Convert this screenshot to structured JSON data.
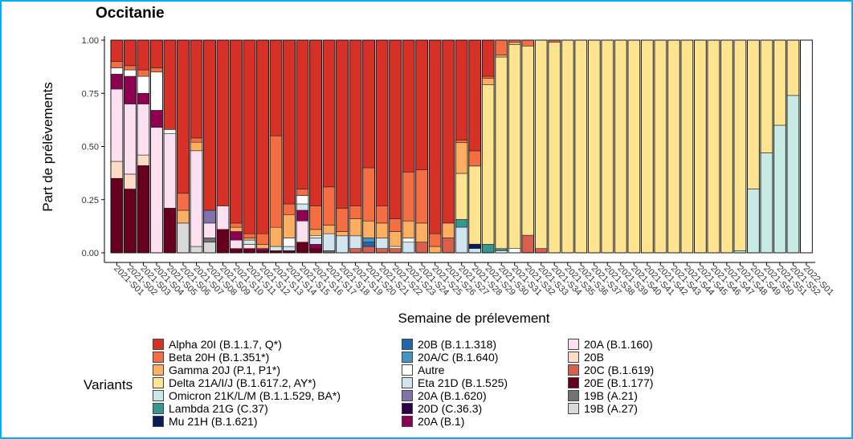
{
  "title": "Occitanie",
  "chart_data": {
    "type": "bar",
    "stacked": true,
    "xlabel": "Semaine de prélevement",
    "ylabel": "Part de prélèvements",
    "ylim": [
      0,
      1
    ],
    "yticks": [
      "0.00",
      "0.25",
      "0.50",
      "0.75",
      "1.00"
    ],
    "legend_title": "Variants",
    "legend_position": "bottom",
    "categories": [
      "2021-S01",
      "2021-S02",
      "2021-S03",
      "2021-S04",
      "2021-S05",
      "2021-S06",
      "2021-S07",
      "2021-S08",
      "2021-S09",
      "2021-S10",
      "2021-S11",
      "2021-S12",
      "2021-S13",
      "2021-S14",
      "2021-S15",
      "2021-S16",
      "2021-S17",
      "2021-S18",
      "2021-S19",
      "2021-S20",
      "2021-S21",
      "2021-S22",
      "2021-S23",
      "2021-S24",
      "2021-S25",
      "2021-S26",
      "2021-S27",
      "2021-S28",
      "2021-S29",
      "2021-S30",
      "2021-S31",
      "2021-S32",
      "2021-S33",
      "2021-S34",
      "2021-S35",
      "2021-S36",
      "2021-S37",
      "2021-S38",
      "2021-S39",
      "2021-S40",
      "2021-S41",
      "2021-S42",
      "2021-S43",
      "2021-S44",
      "2021-S45",
      "2021-S46",
      "2021-S47",
      "2021-S48",
      "2021-S49",
      "2021-S50",
      "2021-S51",
      "2021-S52",
      "2022-S01"
    ],
    "series": [
      {
        "name": "19B (A.27)",
        "color": "#d9d9d9",
        "values": [
          0,
          0,
          0,
          0,
          0,
          0.14,
          0.03,
          0.05,
          0,
          0,
          0,
          0,
          0,
          0,
          0,
          0,
          0,
          0,
          0,
          0,
          0,
          0,
          0,
          0,
          0,
          0,
          0,
          0,
          0,
          0,
          0,
          0,
          0,
          0,
          0,
          0,
          0,
          0,
          0,
          0,
          0,
          0,
          0,
          0,
          0,
          0,
          0,
          0,
          0,
          0,
          0,
          0,
          0
        ]
      },
      {
        "name": "19B (A.21)",
        "color": "#737373",
        "values": [
          0,
          0,
          0,
          0,
          0,
          0,
          0,
          0.02,
          0,
          0,
          0,
          0,
          0,
          0,
          0,
          0,
          0.01,
          0,
          0,
          0,
          0,
          0,
          0,
          0,
          0,
          0,
          0,
          0,
          0,
          0,
          0,
          0,
          0,
          0,
          0,
          0,
          0,
          0,
          0,
          0,
          0,
          0,
          0,
          0,
          0,
          0,
          0,
          0,
          0,
          0,
          0,
          0,
          0
        ]
      },
      {
        "name": "20E (B.1.177)",
        "color": "#67001f",
        "values": [
          0.35,
          0.3,
          0.41,
          0,
          0.21,
          0,
          0,
          0,
          0.11,
          0.02,
          0.02,
          0.01,
          0.01,
          0.01,
          0.05,
          0.02,
          0,
          0,
          0,
          0,
          0,
          0,
          0,
          0,
          0,
          0,
          0,
          0,
          0,
          0,
          0,
          0,
          0,
          0,
          0,
          0,
          0,
          0,
          0,
          0,
          0,
          0,
          0,
          0,
          0,
          0,
          0,
          0,
          0,
          0,
          0,
          0,
          0
        ]
      },
      {
        "name": "20C (B.1.619)",
        "color": "#d6604d",
        "values": [
          0,
          0,
          0,
          0,
          0,
          0,
          0,
          0,
          0,
          0,
          0,
          0,
          0,
          0,
          0,
          0,
          0,
          0,
          0.02,
          0.03,
          0.02,
          0.02,
          0,
          0.05,
          0,
          0.07,
          0,
          0,
          0,
          0,
          0,
          0.09,
          0.02,
          0,
          0,
          0,
          0,
          0,
          0,
          0,
          0,
          0,
          0,
          0,
          0,
          0,
          0,
          0,
          0,
          0,
          0,
          0,
          0
        ]
      },
      {
        "name": "20B",
        "color": "#fddbc7",
        "values": [
          0.08,
          0.07,
          0.05,
          0,
          0,
          0,
          0,
          0,
          0,
          0,
          0,
          0,
          0,
          0,
          0,
          0,
          0,
          0,
          0,
          0,
          0,
          0,
          0,
          0,
          0,
          0,
          0,
          0,
          0,
          0,
          0,
          0,
          0,
          0,
          0,
          0,
          0,
          0,
          0,
          0,
          0,
          0,
          0,
          0,
          0,
          0,
          0,
          0,
          0,
          0,
          0,
          0,
          0
        ]
      },
      {
        "name": "20A (B.1.160)",
        "color": "#fde0ef",
        "values": [
          0.34,
          0.33,
          0.24,
          0.59,
          0.35,
          0,
          0.45,
          0.07,
          0.11,
          0.04,
          0.02,
          0,
          0,
          0,
          0.1,
          0,
          0,
          0,
          0,
          0,
          0,
          0,
          0,
          0,
          0,
          0,
          0,
          0,
          0,
          0,
          0,
          0,
          0,
          0,
          0,
          0,
          0,
          0,
          0,
          0,
          0,
          0,
          0,
          0,
          0,
          0,
          0,
          0,
          0,
          0,
          0,
          0,
          0
        ]
      },
      {
        "name": "20A (B.1)",
        "color": "#8e0152",
        "values": [
          0.07,
          0.13,
          0.05,
          0.08,
          0,
          0,
          0,
          0,
          0,
          0.04,
          0,
          0.01,
          0,
          0,
          0.05,
          0.02,
          0,
          0,
          0,
          0,
          0,
          0,
          0,
          0,
          0,
          0,
          0,
          0,
          0,
          0,
          0,
          0,
          0,
          0,
          0,
          0,
          0,
          0,
          0,
          0,
          0,
          0,
          0,
          0,
          0,
          0,
          0,
          0,
          0,
          0,
          0,
          0,
          0
        ]
      },
      {
        "name": "20A (B.1.620)",
        "color": "#8073ac",
        "values": [
          0,
          0,
          0,
          0,
          0,
          0,
          0,
          0.06,
          0,
          0,
          0,
          0,
          0,
          0,
          0,
          0,
          0,
          0,
          0,
          0,
          0,
          0,
          0,
          0,
          0,
          0,
          0,
          0,
          0,
          0,
          0,
          0,
          0,
          0,
          0,
          0,
          0,
          0,
          0,
          0,
          0,
          0,
          0,
          0,
          0,
          0,
          0,
          0,
          0,
          0,
          0,
          0,
          0
        ]
      },
      {
        "name": "Eta 21D (B.1.525)",
        "color": "#d1e5f0",
        "values": [
          0,
          0,
          0,
          0,
          0,
          0,
          0,
          0,
          0,
          0,
          0.02,
          0,
          0.02,
          0.02,
          0.03,
          0.03,
          0.08,
          0.08,
          0.06,
          0,
          0.05,
          0,
          0.05,
          0,
          0,
          0,
          0.1,
          0.02,
          0,
          0,
          0,
          0,
          0,
          0,
          0,
          0,
          0,
          0,
          0,
          0,
          0,
          0,
          0,
          0,
          0,
          0,
          0,
          0,
          0,
          0,
          0,
          0,
          0
        ]
      },
      {
        "name": "20B (B.1.1.318)",
        "color": "#2166ac",
        "values": [
          0,
          0,
          0,
          0,
          0,
          0,
          0,
          0,
          0,
          0,
          0,
          0,
          0,
          0,
          0,
          0,
          0,
          0,
          0,
          0.02,
          0,
          0,
          0,
          0,
          0,
          0,
          0,
          0,
          0,
          0,
          0,
          0,
          0,
          0,
          0,
          0,
          0,
          0,
          0,
          0,
          0,
          0,
          0,
          0,
          0,
          0,
          0,
          0,
          0,
          0,
          0,
          0,
          0
        ]
      },
      {
        "name": "20A/C (B.1.640)",
        "color": "#4393c3",
        "values": [
          0,
          0,
          0,
          0,
          0,
          0,
          0,
          0,
          0,
          0,
          0,
          0,
          0,
          0,
          0,
          0,
          0,
          0,
          0,
          0.02,
          0,
          0,
          0,
          0,
          0,
          0,
          0,
          0,
          0,
          0,
          0,
          0,
          0,
          0,
          0,
          0,
          0,
          0,
          0,
          0,
          0,
          0,
          0,
          0,
          0,
          0,
          0,
          0,
          0,
          0,
          0,
          0,
          0
        ]
      },
      {
        "name": "Autre",
        "color": "#ffffff",
        "values": [
          0.03,
          0.03,
          0.08,
          0.18,
          0.02,
          0,
          0,
          0,
          0,
          0,
          0,
          0,
          0,
          0.04,
          0.04,
          0.01,
          0,
          0,
          0,
          0,
          0,
          0.01,
          0.02,
          0,
          0,
          0,
          0,
          0,
          0,
          0.01,
          0.02,
          0,
          0,
          0,
          0,
          0,
          0,
          0,
          0,
          0,
          0,
          0,
          0,
          0,
          0,
          0,
          0,
          0,
          0,
          0,
          0,
          0,
          0
        ]
      },
      {
        "name": "Mu 21H (B.1.621)",
        "color": "#081d58",
        "values": [
          0,
          0,
          0,
          0,
          0,
          0,
          0,
          0,
          0,
          0,
          0,
          0,
          0,
          0,
          0,
          0,
          0,
          0,
          0,
          0,
          0,
          0,
          0,
          0,
          0,
          0,
          0,
          0.02,
          0,
          0,
          0,
          0,
          0,
          0,
          0,
          0,
          0,
          0,
          0,
          0,
          0,
          0,
          0,
          0,
          0,
          0,
          0,
          0,
          0,
          0,
          0,
          0,
          0
        ]
      },
      {
        "name": "Lambda 21G (C.37)",
        "color": "#35978f",
        "values": [
          0,
          0,
          0,
          0,
          0,
          0,
          0,
          0,
          0,
          0,
          0,
          0,
          0,
          0,
          0,
          0,
          0,
          0,
          0,
          0,
          0,
          0,
          0,
          0,
          0,
          0,
          0.03,
          0,
          0.04,
          0.01,
          0,
          0,
          0,
          0,
          0,
          0,
          0,
          0,
          0,
          0,
          0,
          0,
          0,
          0,
          0,
          0,
          0,
          0,
          0,
          0,
          0,
          0,
          0
        ]
      },
      {
        "name": "Omicron 21K/L/M (B.1.1.529, BA*)",
        "color": "#c7eae5",
        "values": [
          0,
          0,
          0,
          0,
          0,
          0,
          0,
          0,
          0,
          0,
          0,
          0,
          0,
          0,
          0,
          0,
          0,
          0,
          0,
          0,
          0,
          0,
          0,
          0,
          0,
          0,
          0,
          0,
          0,
          0,
          0,
          0,
          0,
          0,
          0,
          0,
          0,
          0,
          0,
          0,
          0,
          0,
          0,
          0,
          0,
          0,
          0,
          0.01,
          0.3,
          0.47,
          0.6,
          0.74,
          0
        ]
      },
      {
        "name": "Delta 21A/I/J (B.1.617.2, AY*)",
        "color": "#fee391",
        "values": [
          0,
          0,
          0,
          0,
          0,
          0,
          0,
          0,
          0,
          0,
          0,
          0,
          0,
          0,
          0,
          0,
          0,
          0,
          0,
          0,
          0,
          0,
          0,
          0,
          0,
          0,
          0.18,
          0.36,
          0.75,
          0.91,
          0.96,
          0.97,
          0.98,
          0.99,
          0.995,
          0.997,
          0.998,
          0.998,
          0.998,
          0.998,
          0.998,
          0.998,
          0.998,
          0.998,
          0.998,
          0.998,
          0.998,
          0.99,
          0.7,
          0.53,
          0.4,
          0.26,
          0
        ]
      },
      {
        "name": "Gamma 20J (P.1, P1*)",
        "color": "#fdae61",
        "values": [
          0,
          0,
          0,
          0,
          0,
          0.06,
          0.04,
          0,
          0,
          0.02,
          0.01,
          0.02,
          0.09,
          0.11,
          0,
          0.03,
          0.04,
          0.02,
          0.08,
          0.08,
          0.07,
          0.07,
          0.08,
          0.09,
          0.03,
          0.07,
          0.12,
          0,
          0.03,
          0.01,
          0.01,
          0,
          0,
          0,
          0,
          0,
          0,
          0,
          0,
          0,
          0,
          0,
          0,
          0,
          0,
          0,
          0,
          0,
          0,
          0,
          0,
          0,
          0
        ]
      },
      {
        "name": "Beta 20H (B.1.351*)",
        "color": "#f46d43",
        "values": [
          0.03,
          0.02,
          0.03,
          0.02,
          0,
          0.08,
          0.02,
          0,
          0,
          0.02,
          0.02,
          0.05,
          0.43,
          0.05,
          0.03,
          0.11,
          0.18,
          0.11,
          0.06,
          0.25,
          0.08,
          0.06,
          0.23,
          0.25,
          0.06,
          0,
          0.01,
          0.07,
          0.01,
          0.07,
          0.01,
          0.03,
          0,
          0.01,
          0,
          0,
          0,
          0,
          0,
          0,
          0,
          0,
          0,
          0,
          0,
          0,
          0,
          0,
          0,
          0,
          0,
          0,
          0
        ]
      },
      {
        "name": "Alpha 20I (B.1.1.7, Q*)",
        "color": "#d73027",
        "values": [
          0.1,
          0.12,
          0.14,
          0.13,
          0.42,
          0.72,
          0.46,
          0.8,
          0.78,
          0.86,
          0.91,
          0.91,
          0.45,
          0.77,
          0.7,
          0.78,
          0.69,
          0.79,
          0.78,
          0.6,
          0.78,
          0.84,
          0.62,
          0.61,
          0.91,
          0.86,
          0.39,
          0.51,
          0.17,
          0,
          0,
          0,
          0,
          0,
          0,
          0,
          0,
          0,
          0,
          0,
          0,
          0,
          0,
          0,
          0,
          0,
          0,
          0,
          0,
          0,
          0,
          0,
          0
        ]
      }
    ]
  }
}
